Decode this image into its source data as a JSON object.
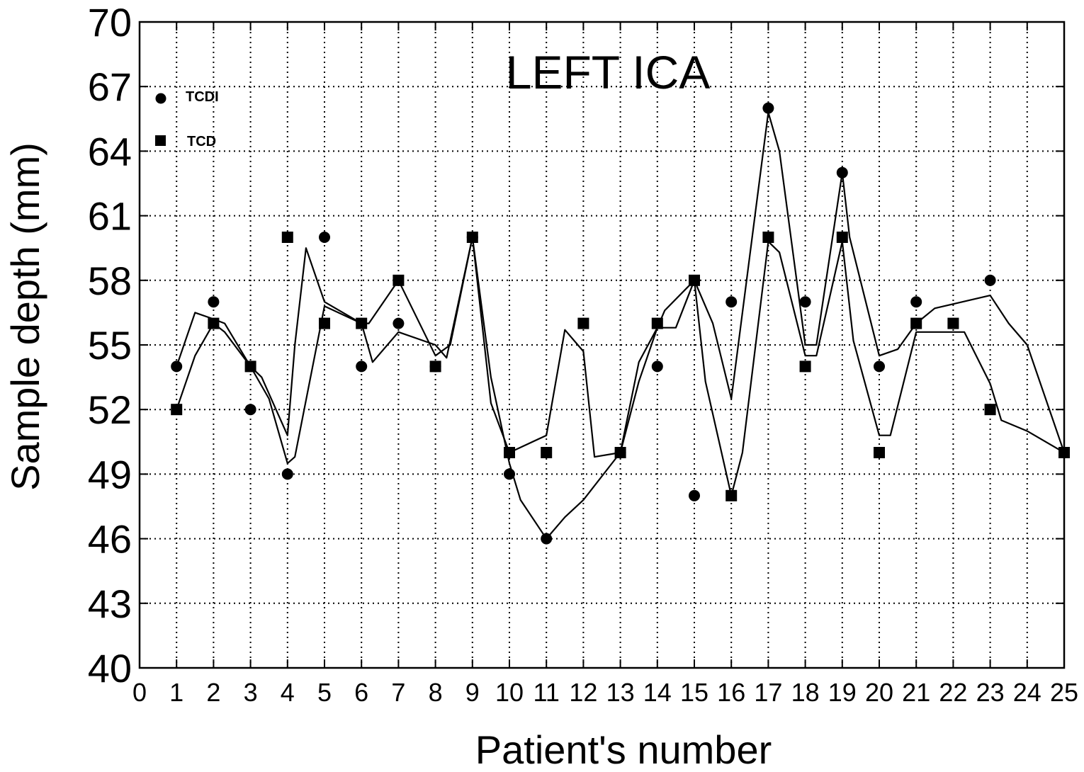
{
  "chart_data": {
    "type": "scatter",
    "title": "LEFT ICA",
    "xlabel": "Patient's number",
    "ylabel": "Sample depth (mm)",
    "xlim": [
      0,
      25
    ],
    "ylim": [
      40,
      70
    ],
    "xticks": [
      "0",
      "1",
      "2",
      "3",
      "4",
      "5",
      "6",
      "7",
      "8",
      "9",
      "10",
      "11",
      "12",
      "13",
      "14",
      "15",
      "16",
      "17",
      "18",
      "19",
      "20",
      "21",
      "22",
      "23",
      "24",
      "25"
    ],
    "yticks": [
      "40",
      "43",
      "46",
      "49",
      "52",
      "55",
      "58",
      "61",
      "64",
      "67",
      "70"
    ],
    "grid": true,
    "legend_position": "top-left",
    "series": [
      {
        "name": "TCDI",
        "marker": "circle",
        "x": [
          1,
          2,
          3,
          4,
          5,
          6,
          7,
          8,
          9,
          10,
          11,
          13,
          14,
          15,
          16,
          17,
          18,
          19,
          20,
          21,
          23,
          25
        ],
        "y": [
          54,
          57,
          52,
          49,
          60,
          54,
          56,
          54,
          60,
          49,
          46,
          50,
          54,
          48,
          57,
          66,
          57,
          63,
          54,
          57,
          58,
          50
        ],
        "curve_x": [
          1,
          1.5,
          2,
          2.3,
          3,
          3.5,
          4,
          4.2,
          5,
          6,
          6.2,
          7,
          8,
          8.4,
          9,
          9.5,
          10,
          10.3,
          11,
          11.5,
          12,
          13,
          13.5,
          14,
          14.2,
          15,
          15.5,
          16,
          17,
          17.3,
          18,
          18.3,
          19,
          19.2,
          20,
          20.5,
          21,
          21.5,
          23,
          23.5,
          24,
          25
        ],
        "curve_y": [
          54,
          56.5,
          56.2,
          56,
          54,
          52.5,
          49.5,
          49.8,
          56.8,
          56,
          56,
          58,
          54.5,
          55,
          60,
          53.5,
          49.5,
          47.8,
          46,
          47,
          47.8,
          50,
          54.2,
          55.8,
          56.6,
          58,
          56,
          52.5,
          65.8,
          64,
          55,
          55,
          63,
          60,
          54.5,
          54.8,
          56,
          56.7,
          57.3,
          56,
          55,
          50
        ]
      },
      {
        "name": "TCD",
        "marker": "square",
        "x": [
          1,
          2,
          3,
          4,
          5,
          6,
          7,
          8,
          9,
          10,
          11,
          12,
          13,
          14,
          15,
          16,
          17,
          18,
          19,
          20,
          21,
          22,
          23,
          25
        ],
        "y": [
          52,
          56,
          54,
          60,
          56,
          56,
          58,
          54,
          60,
          50,
          50,
          56,
          50,
          56,
          58,
          48,
          60,
          54,
          60,
          50,
          56,
          56,
          52,
          50
        ],
        "curve_x": [
          1,
          1.5,
          2,
          2.3,
          3,
          3.3,
          4,
          4.2,
          4.5,
          5,
          5.2,
          6,
          6.3,
          7,
          8,
          8.3,
          9,
          9.5,
          10,
          11,
          11.5,
          12,
          12.3,
          13,
          13.5,
          14,
          14.2,
          14.5,
          15,
          15.3,
          16,
          16.3,
          17,
          17.3,
          18,
          18.3,
          19,
          19.3,
          20,
          20.3,
          21,
          21.5,
          22,
          22.3,
          23,
          23.3,
          24,
          25
        ],
        "curve_y": [
          52,
          54.5,
          56,
          55.6,
          54,
          53.5,
          50.8,
          55,
          59.5,
          57,
          56.8,
          56,
          54.2,
          55.6,
          55,
          54.4,
          60,
          52.3,
          50,
          50.8,
          55.7,
          54.7,
          49.8,
          50,
          53.3,
          55.8,
          55.8,
          55.8,
          58,
          53.3,
          48,
          50,
          59.8,
          59.3,
          54.5,
          54.5,
          59.8,
          55.2,
          50.8,
          50.8,
          55.6,
          55.6,
          55.6,
          55.6,
          53.2,
          51.5,
          51,
          50
        ]
      }
    ]
  }
}
